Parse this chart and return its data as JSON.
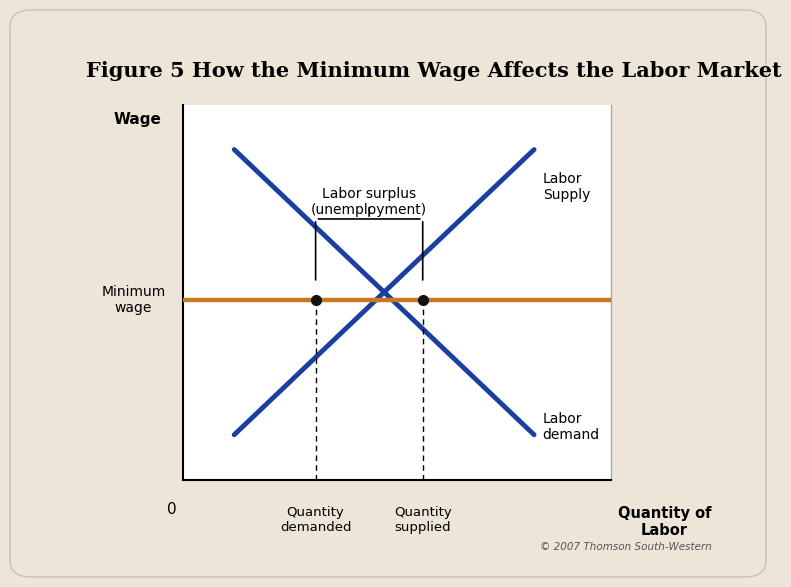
{
  "title": "Figure 5 How the Minimum Wage Affects the Labor Market",
  "bg_outer": "#ece5d8",
  "chart_bg": "#ffffff",
  "title_fontsize": 15,
  "ylabel": "Wage",
  "xlabel_right": "Quantity of\nLabor",
  "xlabel_left1": "Quantity\ndemanded",
  "xlabel_left2": "Quantity\nsupplied",
  "x_zero_label": "0",
  "supply_color": "#1a3fa0",
  "demand_color": "#1a3fa0",
  "minwage_color": "#c87820",
  "dot_color": "#111111",
  "supply_label": "Labor\nSupply",
  "demand_label": "Labor\ndemand",
  "minwage_label": "Minimum\nwage",
  "surplus_label": "Labor surplus\n(unemployment)",
  "copyright": "© 2007 Thomson South-Western",
  "x_min": 0,
  "x_max": 10,
  "y_min": 0,
  "y_max": 10,
  "min_wage_y": 4.8,
  "qd_x": 3.1,
  "qs_x": 5.6,
  "dem_x1": 1.2,
  "dem_y1": 8.8,
  "dem_x2": 8.2,
  "dem_y2": 1.2,
  "sup_x1": 1.2,
  "sup_y1": 1.2,
  "sup_x2": 8.2,
  "sup_y2": 8.8
}
